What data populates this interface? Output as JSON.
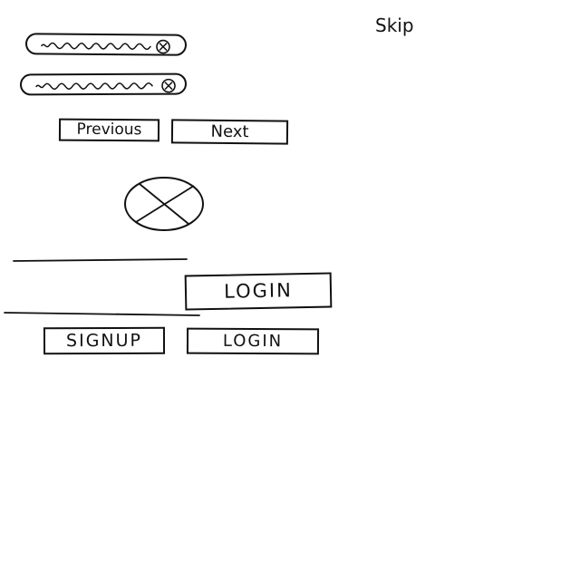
{
  "header": {
    "skip_label": "Skip"
  },
  "navigation": {
    "previous_label": "Previous",
    "next_label": "Next"
  },
  "actions": {
    "login_label_primary": "LOGIN",
    "signup_label": "SIGNUP",
    "login_label_secondary": "LOGIN"
  },
  "icons": {
    "clear_icon_1": "clear-icon",
    "clear_icon_2": "clear-icon",
    "image_placeholder": "image-placeholder-icon"
  },
  "colors": {
    "ink": "#111111",
    "background": "#ffffff"
  }
}
